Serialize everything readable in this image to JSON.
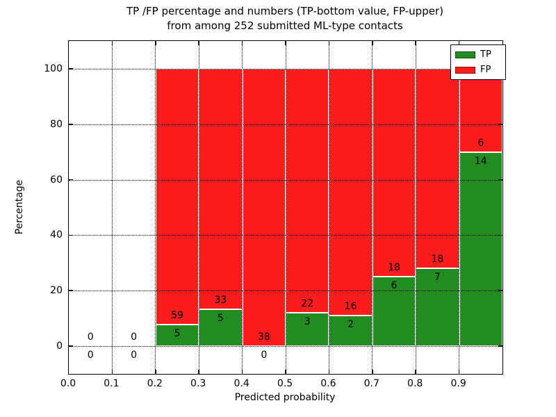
{
  "title": {
    "line1": "TP /FP percentage and numbers (TP-bottom value, FP-upper)",
    "line2": "from among 252 submitted ML-type contacts"
  },
  "chart_data": {
    "type": "bar",
    "stacked": true,
    "title": "TP /FP percentage and numbers (TP-bottom value, FP-upper) from among 252 submitted ML-type contacts",
    "xlabel": "Predicted probability",
    "ylabel": "Percentage",
    "xlim": [
      0.0,
      1.0
    ],
    "ylim": [
      -10,
      110
    ],
    "x_tick_labels": [
      "0.0",
      "0.1",
      "0.2",
      "0.3",
      "0.4",
      "0.5",
      "0.6",
      "0.7",
      "0.8",
      "0.9"
    ],
    "y_tick_values": [
      0,
      20,
      40,
      60,
      80,
      100
    ],
    "grid": true,
    "grid_style": "dotted",
    "total_contacts": 252,
    "legend": {
      "position": "upper right",
      "entries": [
        {
          "label": "TP",
          "color": "#228b22"
        },
        {
          "label": "FP",
          "color": "#fb1d1d"
        }
      ]
    },
    "bars_note": "Each non-empty bin is stacked to 100%: TP percentage (green) on bottom, FP percentage (red) on top. Number labels are raw counts: TP count below the TP/FP boundary, FP count above it.",
    "bins": [
      {
        "x_start": 0.0,
        "x_end": 0.1,
        "tp_count": 0,
        "fp_count": 0,
        "tp_pct": 0
      },
      {
        "x_start": 0.1,
        "x_end": 0.2,
        "tp_count": 0,
        "fp_count": 0,
        "tp_pct": 0
      },
      {
        "x_start": 0.2,
        "x_end": 0.3,
        "tp_count": 5,
        "fp_count": 59,
        "tp_pct": 7.81
      },
      {
        "x_start": 0.3,
        "x_end": 0.4,
        "tp_count": 5,
        "fp_count": 33,
        "tp_pct": 13.16
      },
      {
        "x_start": 0.4,
        "x_end": 0.5,
        "tp_count": 0,
        "fp_count": 38,
        "tp_pct": 0
      },
      {
        "x_start": 0.5,
        "x_end": 0.6,
        "tp_count": 3,
        "fp_count": 22,
        "tp_pct": 12
      },
      {
        "x_start": 0.6,
        "x_end": 0.7,
        "tp_count": 2,
        "fp_count": 16,
        "tp_pct": 11.11
      },
      {
        "x_start": 0.7,
        "x_end": 0.8,
        "tp_count": 6,
        "fp_count": 18,
        "tp_pct": 25
      },
      {
        "x_start": 0.8,
        "x_end": 0.9,
        "tp_count": 7,
        "fp_count": 18,
        "tp_pct": 28
      },
      {
        "x_start": 0.9,
        "x_end": 1.0,
        "tp_count": 14,
        "fp_count": 6,
        "tp_pct": 70
      }
    ]
  },
  "colors": {
    "tp": "#228b22",
    "fp": "#fb1d1d",
    "background": "#ffffff",
    "axis": "#000000",
    "bar_edge": "#ffffff"
  }
}
